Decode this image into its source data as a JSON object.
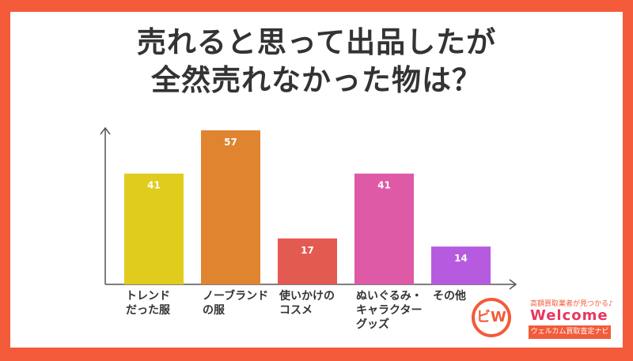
{
  "title_lines": [
    "売れると思って出品したが",
    "全然売れなかった物は？"
  ],
  "chart_data": {
    "type": "bar",
    "title": "売れると思って出品したが全然売れなかった物は？",
    "categories": [
      "トレンド\nだった服",
      "ノーブランド\nの服",
      "使いかけの\nコスメ",
      "ぬいぐるみ・\nキャラクター\nグッズ",
      "その他"
    ],
    "values": [
      41,
      57,
      17,
      41,
      14
    ],
    "colors": [
      "#E0CC1C",
      "#E08430",
      "#E35A50",
      "#DE5AA6",
      "#B65BE0"
    ],
    "xlabel": "",
    "ylabel": "",
    "ylim": [
      0,
      60
    ],
    "grid": false
  },
  "logo": {
    "tagline": "高額買取業者が見つかる♪",
    "word": "Welcome",
    "subtitle": "ウェルカム買取査定ナビ",
    "mark": "ビW"
  },
  "colors": {
    "frame": "#F35B3A",
    "text": "#333333"
  }
}
